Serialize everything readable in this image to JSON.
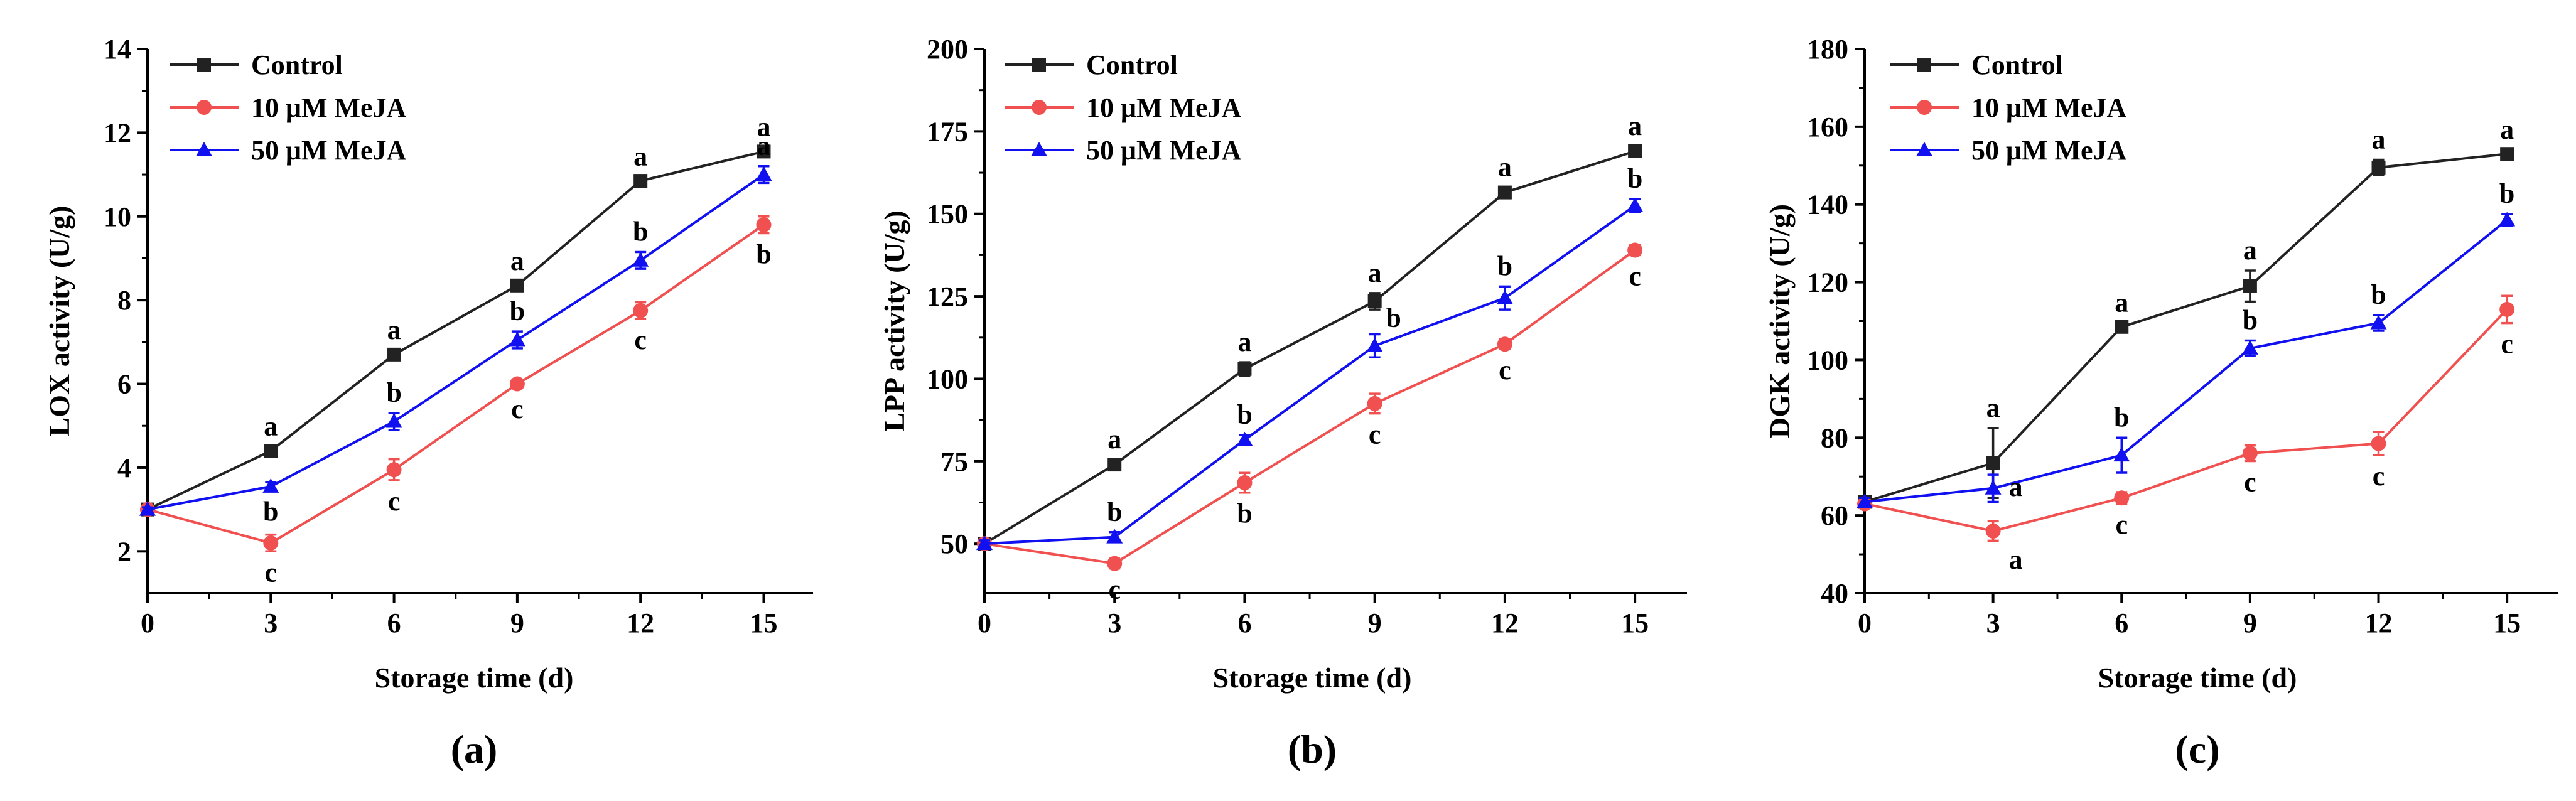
{
  "chart_data": [
    {
      "type": "line",
      "panel_label": "(a)",
      "xlabel": "Storage time (d)",
      "ylabel": "LOX activity (U/g)",
      "x": [
        0,
        3,
        6,
        9,
        12,
        15
      ],
      "xlim": [
        0,
        16.2
      ],
      "ylim": [
        1,
        14
      ],
      "yticks": [
        2,
        4,
        6,
        8,
        10,
        12,
        14
      ],
      "series": [
        {
          "name": "Control",
          "color": "#222222",
          "marker": "square",
          "values": [
            3.0,
            4.4,
            6.7,
            8.35,
            10.85,
            11.55
          ],
          "errors": [
            0.05,
            0.1,
            0.1,
            0.1,
            0.1,
            0.1
          ],
          "letters": [
            "",
            "a",
            "a",
            "a",
            "a",
            "a"
          ]
        },
        {
          "name": "10 μM MeJA",
          "color": "#f0504f",
          "marker": "circle",
          "values": [
            3.0,
            2.2,
            3.95,
            6.0,
            7.75,
            9.8
          ],
          "errors": [
            0.05,
            0.2,
            0.25,
            0.1,
            0.2,
            0.2
          ],
          "letters": [
            "",
            "c",
            "c",
            "c",
            "c",
            "b"
          ]
        },
        {
          "name": "50 μM MeJA",
          "color": "#1010f0",
          "marker": "triangle",
          "values": [
            3.0,
            3.55,
            5.1,
            7.05,
            8.95,
            11.0
          ],
          "errors": [
            0.05,
            0.1,
            0.2,
            0.2,
            0.2,
            0.2
          ],
          "letters": [
            "",
            "b",
            "b",
            "b",
            "b",
            "a"
          ]
        }
      ]
    },
    {
      "type": "line",
      "panel_label": "(b)",
      "xlabel": "Storage time (d)",
      "ylabel": "LPP activity (U/g)",
      "x": [
        0,
        3,
        6,
        9,
        12,
        15
      ],
      "xlim": [
        0,
        16.2
      ],
      "ylim": [
        35,
        200
      ],
      "yticks": [
        50,
        75,
        100,
        125,
        150,
        175,
        200
      ],
      "series": [
        {
          "name": "Control",
          "color": "#222222",
          "marker": "square",
          "values": [
            50,
            74,
            103,
            123.5,
            156.5,
            169
          ],
          "errors": [
            1,
            1.5,
            2,
            2.5,
            1.5,
            1.5
          ],
          "letters": [
            "",
            "a",
            "a",
            "a",
            "a",
            "a"
          ]
        },
        {
          "name": "10 μM MeJA",
          "color": "#f0504f",
          "marker": "circle",
          "values": [
            50,
            44,
            68.5,
            92.5,
            110.5,
            139
          ],
          "errors": [
            1,
            1.5,
            3,
            3,
            1.5,
            1.5
          ],
          "letters": [
            "",
            "c",
            "b",
            "c",
            "c",
            "c"
          ]
        },
        {
          "name": "50 μM MeJA",
          "color": "#1010f0",
          "marker": "triangle",
          "values": [
            50,
            52,
            81.5,
            110,
            124.5,
            152.5
          ],
          "errors": [
            1,
            1.5,
            1.5,
            3.5,
            3.5,
            2
          ],
          "letters": [
            "",
            "b",
            "b",
            "b",
            "b",
            "b"
          ]
        }
      ]
    },
    {
      "type": "line",
      "panel_label": "(c)",
      "xlabel": "Storage time (d)",
      "ylabel": "DGK activity (U/g)",
      "x": [
        0,
        3,
        6,
        9,
        12,
        15
      ],
      "xlim": [
        0,
        16.2
      ],
      "ylim": [
        40,
        180
      ],
      "yticks": [
        40,
        60,
        80,
        100,
        120,
        140,
        160,
        180
      ],
      "series": [
        {
          "name": "Control",
          "color": "#222222",
          "marker": "square",
          "values": [
            63.5,
            73.5,
            108.5,
            119,
            149.5,
            153
          ],
          "errors": [
            1,
            9,
            1,
            4,
            2,
            1
          ],
          "letters": [
            "",
            "a",
            "a",
            "a",
            "a",
            "a"
          ]
        },
        {
          "name": "10 μM MeJA",
          "color": "#f0504f",
          "marker": "circle",
          "values": [
            63.0,
            56.0,
            64.5,
            76.0,
            78.5,
            113.0
          ],
          "errors": [
            1,
            2.5,
            1.5,
            2,
            3,
            3.5
          ],
          "letters": [
            "",
            "a",
            "c",
            "c",
            "c",
            "c"
          ]
        },
        {
          "name": "50 μM MeJA",
          "color": "#1010f0",
          "marker": "triangle",
          "values": [
            63.5,
            67.0,
            75.5,
            103.0,
            109.5,
            136.0
          ],
          "errors": [
            1,
            3.5,
            4.5,
            2,
            2,
            1.5
          ],
          "letters": [
            "",
            "a",
            "b",
            "b",
            "b",
            "b"
          ]
        }
      ]
    }
  ]
}
